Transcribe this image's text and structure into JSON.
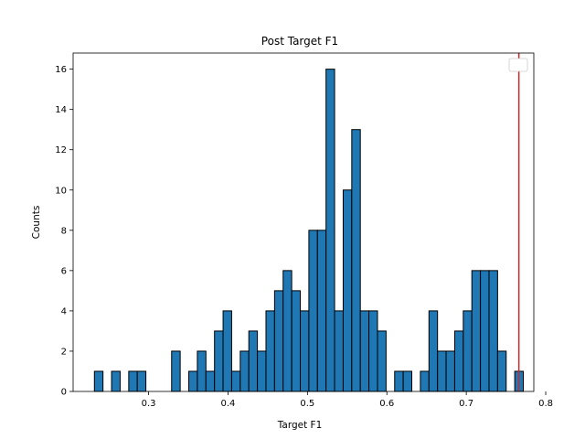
{
  "chart_data": {
    "type": "bar",
    "title": "Post Target F1",
    "xlabel": "Target F1",
    "ylabel": "Counts",
    "xlim": [
      0.205,
      0.785
    ],
    "ylim": [
      0,
      16.8
    ],
    "xticks": [
      0.3,
      0.4,
      0.5,
      0.6,
      0.7,
      0.8
    ],
    "xtick_labels": [
      "0.3",
      "0.4",
      "0.5",
      "0.6",
      "0.7",
      "0.8"
    ],
    "yticks": [
      0,
      2,
      4,
      6,
      8,
      10,
      12,
      14,
      16
    ],
    "ytick_labels": [
      "0",
      "2",
      "4",
      "6",
      "8",
      "10",
      "12",
      "14",
      "16"
    ],
    "bin_start": 0.2318,
    "bin_width": 0.0108,
    "counts": [
      1,
      0,
      1,
      0,
      1,
      1,
      0,
      0,
      0,
      2,
      0,
      1,
      2,
      1,
      3,
      4,
      1,
      2,
      3,
      2,
      4,
      5,
      6,
      5,
      4,
      8,
      8,
      16,
      4,
      10,
      13,
      4,
      4,
      3,
      0,
      1,
      1,
      0,
      1,
      4,
      2,
      2,
      3,
      4,
      6,
      6,
      6,
      2,
      0,
      1
    ],
    "bar_color": "#1f77b4",
    "edge_color": "#000000",
    "vline": {
      "x": 0.7662,
      "color": "#d62728"
    },
    "legend": {
      "placement": "upper-right",
      "entries": []
    },
    "grid": false
  }
}
